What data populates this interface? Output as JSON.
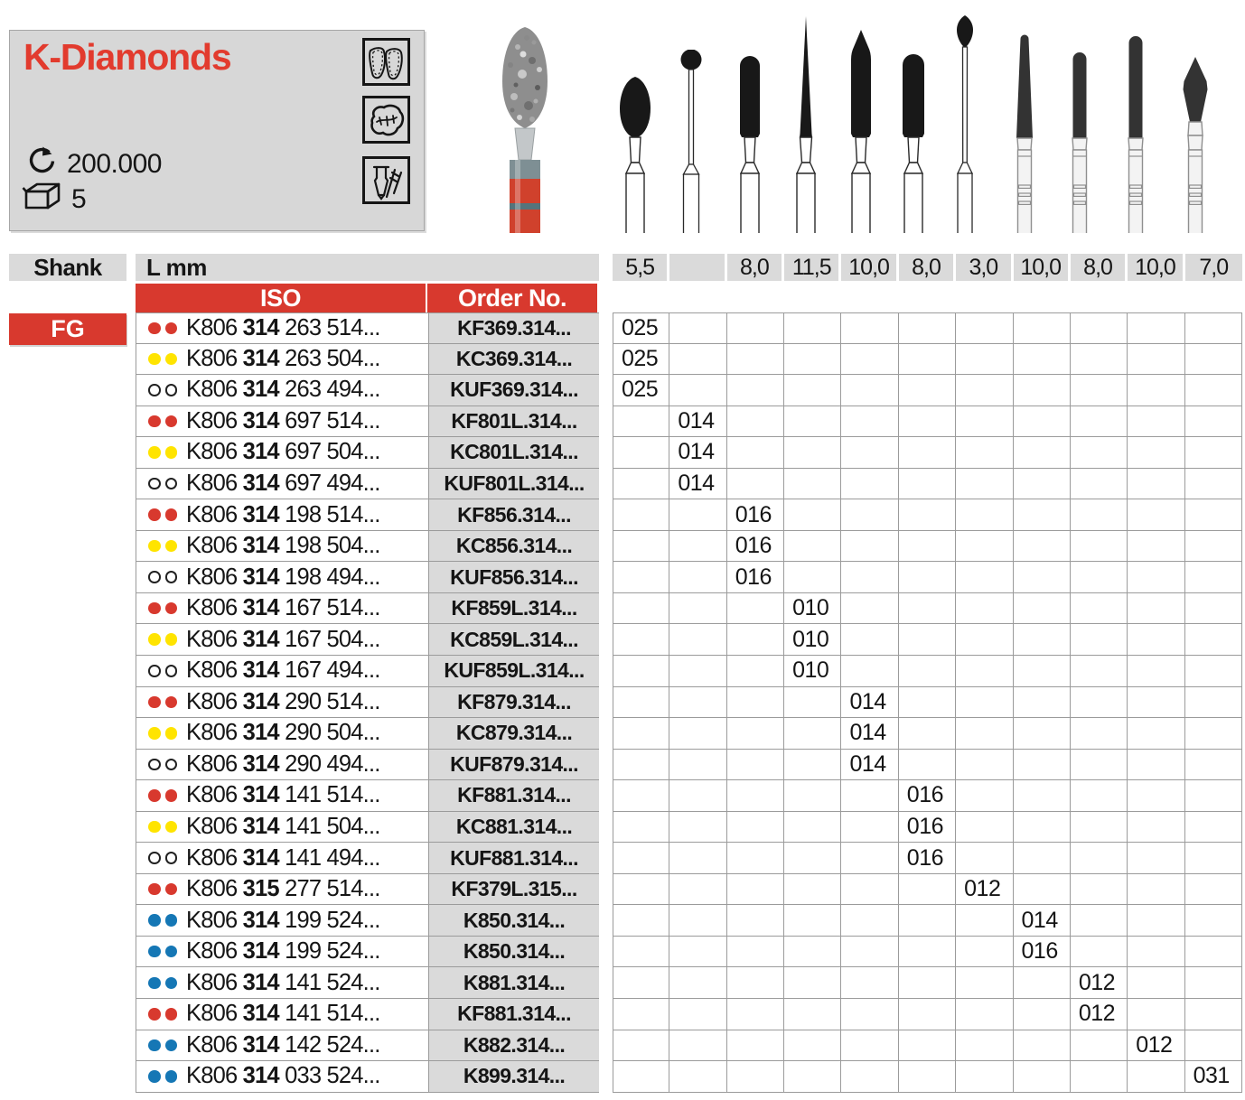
{
  "info_box": {
    "title": "K-Diamonds",
    "max_rpm": "200.000",
    "pack_quantity": "5",
    "accent_red": "#d8392e",
    "title_red": "#e23b2e",
    "indication_icons": [
      "veneer-teeth-icon",
      "molar-occlusal-icon",
      "bur-spray-icon"
    ],
    "spec_icons": [
      "rotation-speed-icon",
      "package-icon"
    ]
  },
  "figures": {
    "photo": "diamond-bur-photo",
    "silhouettes": [
      "egg",
      "round-ball",
      "cylinder-round-end",
      "needle",
      "torpedo-pointed",
      "cylinder-round-end",
      "flame-long-neck",
      "taper-round-end",
      "cylinder-round-end",
      "cylinder-round-end",
      "rhombus"
    ]
  },
  "table": {
    "shank_header": "Shank",
    "shank_value": "FG",
    "length_header": "L mm",
    "iso_header": "ISO",
    "order_header": "Order No.",
    "length_values": [
      "5,5",
      "",
      "8,0",
      "11,5",
      "10,0",
      "8,0",
      "3,0",
      "10,0",
      "8,0",
      "10,0",
      "7,0"
    ],
    "dot_colors": {
      "red": "#d8392e",
      "yellow": "#ffe400",
      "white": "#ffffff",
      "blue": "#1577b5"
    },
    "header_red": "#d8392e",
    "rows": [
      {
        "grit": "red",
        "iso_pre": "K806",
        "iso_bold": "314",
        "iso_rest": "263 514...",
        "order_no": "KF369.314...",
        "size_col": 0,
        "size": "025"
      },
      {
        "grit": "yellow",
        "iso_pre": "K806",
        "iso_bold": "314",
        "iso_rest": "263 504...",
        "order_no": "KC369.314...",
        "size_col": 0,
        "size": "025"
      },
      {
        "grit": "white",
        "iso_pre": "K806",
        "iso_bold": "314",
        "iso_rest": "263 494...",
        "order_no": "KUF369.314...",
        "size_col": 0,
        "size": "025"
      },
      {
        "grit": "red",
        "iso_pre": "K806",
        "iso_bold": "314",
        "iso_rest": "697 514...",
        "order_no": "KF801L.314...",
        "size_col": 1,
        "size": "014"
      },
      {
        "grit": "yellow",
        "iso_pre": "K806",
        "iso_bold": "314",
        "iso_rest": "697 504...",
        "order_no": "KC801L.314...",
        "size_col": 1,
        "size": "014"
      },
      {
        "grit": "white",
        "iso_pre": "K806",
        "iso_bold": "314",
        "iso_rest": "697 494...",
        "order_no": "KUF801L.314...",
        "size_col": 1,
        "size": "014"
      },
      {
        "grit": "red",
        "iso_pre": "K806",
        "iso_bold": "314",
        "iso_rest": "198 514...",
        "order_no": "KF856.314...",
        "size_col": 2,
        "size": "016"
      },
      {
        "grit": "yellow",
        "iso_pre": "K806",
        "iso_bold": "314",
        "iso_rest": "198 504...",
        "order_no": "KC856.314...",
        "size_col": 2,
        "size": "016"
      },
      {
        "grit": "white",
        "iso_pre": "K806",
        "iso_bold": "314",
        "iso_rest": "198 494...",
        "order_no": "KUF856.314...",
        "size_col": 2,
        "size": "016"
      },
      {
        "grit": "red",
        "iso_pre": "K806",
        "iso_bold": "314",
        "iso_rest": "167 514...",
        "order_no": "KF859L.314...",
        "size_col": 3,
        "size": "010"
      },
      {
        "grit": "yellow",
        "iso_pre": "K806",
        "iso_bold": "314",
        "iso_rest": "167 504...",
        "order_no": "KC859L.314...",
        "size_col": 3,
        "size": "010"
      },
      {
        "grit": "white",
        "iso_pre": "K806",
        "iso_bold": "314",
        "iso_rest": "167 494...",
        "order_no": "KUF859L.314...",
        "size_col": 3,
        "size": "010"
      },
      {
        "grit": "red",
        "iso_pre": "K806",
        "iso_bold": "314",
        "iso_rest": "290 514...",
        "order_no": "KF879.314...",
        "size_col": 4,
        "size": "014"
      },
      {
        "grit": "yellow",
        "iso_pre": "K806",
        "iso_bold": "314",
        "iso_rest": "290 504...",
        "order_no": "KC879.314...",
        "size_col": 4,
        "size": "014"
      },
      {
        "grit": "white",
        "iso_pre": "K806",
        "iso_bold": "314",
        "iso_rest": "290 494...",
        "order_no": "KUF879.314...",
        "size_col": 4,
        "size": "014"
      },
      {
        "grit": "red",
        "iso_pre": "K806",
        "iso_bold": "314",
        "iso_rest": "141 514...",
        "order_no": "KF881.314...",
        "size_col": 5,
        "size": "016"
      },
      {
        "grit": "yellow",
        "iso_pre": "K806",
        "iso_bold": "314",
        "iso_rest": "141 504...",
        "order_no": "KC881.314...",
        "size_col": 5,
        "size": "016"
      },
      {
        "grit": "white",
        "iso_pre": "K806",
        "iso_bold": "314",
        "iso_rest": "141 494...",
        "order_no": "KUF881.314...",
        "size_col": 5,
        "size": "016"
      },
      {
        "grit": "red",
        "iso_pre": "K806",
        "iso_bold": "315",
        "iso_rest": "277 514...",
        "order_no": "KF379L.315...",
        "size_col": 6,
        "size": "012"
      },
      {
        "grit": "blue",
        "iso_pre": "K806",
        "iso_bold": "314",
        "iso_rest": "199 524...",
        "order_no": "K850.314...",
        "size_col": 7,
        "size": "014"
      },
      {
        "grit": "blue",
        "iso_pre": "K806",
        "iso_bold": "314",
        "iso_rest": "199 524...",
        "order_no": "K850.314...",
        "size_col": 7,
        "size": "016"
      },
      {
        "grit": "blue",
        "iso_pre": "K806",
        "iso_bold": "314",
        "iso_rest": "141 524...",
        "order_no": "K881.314...",
        "size_col": 8,
        "size": "012"
      },
      {
        "grit": "red",
        "iso_pre": "K806",
        "iso_bold": "314",
        "iso_rest": "141 514...",
        "order_no": "KF881.314...",
        "size_col": 8,
        "size": "012"
      },
      {
        "grit": "blue",
        "iso_pre": "K806",
        "iso_bold": "314",
        "iso_rest": "142 524...",
        "order_no": "K882.314...",
        "size_col": 9,
        "size": "012"
      },
      {
        "grit": "blue",
        "iso_pre": "K806",
        "iso_bold": "314",
        "iso_rest": "033 524...",
        "order_no": "K899.314...",
        "size_col": 10,
        "size": "031"
      }
    ]
  }
}
